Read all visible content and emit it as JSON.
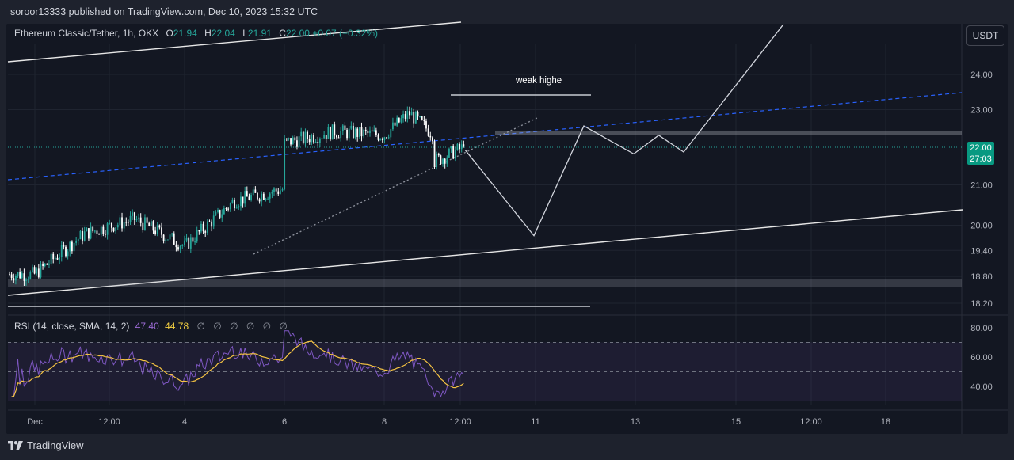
{
  "publish_text": "soroor13333 published on TradingView.com, Dec 10, 2023 15:32 UTC",
  "symbol": {
    "name": "Ethereum Classic/Tether, 1h, OKX",
    "o_label": "O",
    "o": "21.94",
    "h_label": "H",
    "h": "22.04",
    "l_label": "L",
    "l": "21.91",
    "c_label": "C",
    "c": "22.00",
    "change": "+0.07 (+0.32%)"
  },
  "currency_button": "USDT",
  "current_price": "22.00",
  "countdown": "27:03",
  "annotation": "weak highe",
  "rsi_legend": {
    "label": "RSI (14, close, SMA, 14, 2)",
    "rsi_value": "47.40",
    "sma_value": "44.78",
    "na_marks": [
      "∅",
      "∅",
      "∅",
      "∅",
      "∅",
      "∅"
    ]
  },
  "footer_brand": "TradingView",
  "colors": {
    "up": "#26a69a",
    "down": "#ffffff",
    "rsi": "#7e57c2",
    "rsi_sma": "#f5c342",
    "trend_blue": "#2962ff",
    "price_badge": "#089981"
  },
  "chart_data": [
    {
      "type": "candlestick",
      "title": "Ethereum Classic/Tether, 1h, OKX",
      "x_ticks": [
        "Dec",
        "12:00",
        "4",
        "6",
        "8",
        "12:00",
        "11",
        "13",
        "15",
        "12:00",
        "18"
      ],
      "y_ticks": [
        "24.00",
        "23.00",
        "21.00",
        "20.00",
        "19.40",
        "18.80",
        "18.20"
      ],
      "y_scale": "log",
      "last_price": 22.0,
      "key_points": [
        {
          "t": "Dec 2",
          "price": 18.85
        },
        {
          "t": "Dec 3",
          "price": 19.8
        },
        {
          "t": "Dec 4",
          "price": 20.15
        },
        {
          "t": "Dec 5",
          "price": 19.5
        },
        {
          "t": "Dec 6",
          "price": 20.6
        },
        {
          "t": "Dec 7",
          "price": 20.9
        },
        {
          "t": "Dec 7",
          "price": 22.1
        },
        {
          "t": "Dec 8",
          "price": 22.4
        },
        {
          "t": "Dec 9",
          "price": 22.3
        },
        {
          "t": "Dec 9 12:00",
          "price": 22.9
        },
        {
          "t": "Dec 10",
          "price": 22.3
        },
        {
          "t": "Dec 10",
          "price": 21.6
        },
        {
          "t": "Dec 10 15:00",
          "price": 22.0
        }
      ],
      "projection": [
        {
          "t": "Dec 10 15:00",
          "price": 21.9
        },
        {
          "t": "Dec 12",
          "price": 19.75
        },
        {
          "t": "Dec 13",
          "price": 22.55
        },
        {
          "t": "Dec 14",
          "price": 21.8
        },
        {
          "t": "Dec 14 12:00",
          "price": 22.3
        },
        {
          "t": "Dec 15",
          "price": 21.85
        },
        {
          "t": "Dec 17",
          "price": 25.5
        }
      ],
      "horizontal_levels": [
        22.38,
        18.85,
        18.2
      ],
      "grid": true
    },
    {
      "type": "line",
      "title": "RSI (14, close, SMA, 14, 2)",
      "y_ticks": [
        "80.00",
        "60.00",
        "40.00"
      ],
      "bands": [
        70,
        50,
        30
      ],
      "series": [
        {
          "name": "RSI",
          "last": 47.4
        },
        {
          "name": "SMA",
          "last": 44.78
        }
      ]
    }
  ]
}
